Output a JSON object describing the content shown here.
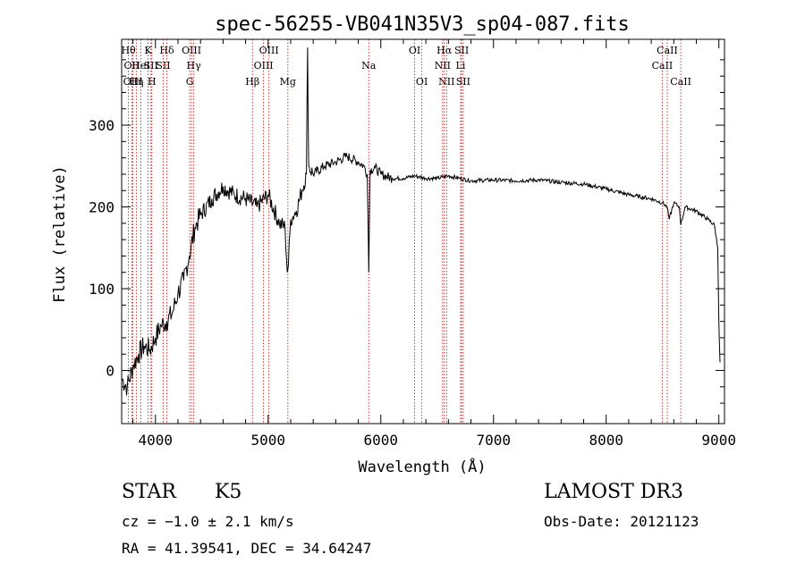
{
  "chart_data": {
    "type": "line",
    "title": "spec-56255-VB041N35V3_sp04-087.fits",
    "xlabel": "Wavelength (Å)",
    "ylabel": "Flux (relative)",
    "xlim": [
      3700,
      9050
    ],
    "ylim": [
      -65,
      405
    ],
    "x_ticks": [
      4000,
      5000,
      6000,
      7000,
      8000,
      9000
    ],
    "y_ticks": [
      0,
      100,
      200,
      300
    ],
    "x_tick_labels": [
      "4000",
      "5000",
      "6000",
      "7000",
      "8000",
      "9000"
    ],
    "y_tick_labels": [
      "0",
      "100",
      "200",
      "300"
    ],
    "grid": false,
    "line_color": "#000000",
    "marker_color": "#cc2222",
    "series": [
      {
        "name": "Flux",
        "x": [
          3700,
          3750,
          3800,
          3850,
          3900,
          3950,
          4000,
          4050,
          4100,
          4150,
          4200,
          4250,
          4300,
          4350,
          4400,
          4500,
          4600,
          4700,
          4800,
          4900,
          5000,
          5100,
          5150,
          5170,
          5180,
          5200,
          5250,
          5300,
          5340,
          5350,
          5360,
          5400,
          5500,
          5600,
          5700,
          5800,
          5850,
          5880,
          5893,
          5905,
          5950,
          6000,
          6100,
          6200,
          6300,
          6400,
          6500,
          6600,
          6700,
          6800,
          7000,
          7200,
          7400,
          7600,
          7800,
          8000,
          8200,
          8400,
          8500,
          8540,
          8560,
          8600,
          8650,
          8662,
          8700,
          8800,
          8900,
          8960,
          8990,
          9000,
          9010
        ],
        "y": [
          -10,
          -20,
          5,
          20,
          30,
          25,
          40,
          55,
          60,
          70,
          95,
          110,
          140,
          175,
          190,
          210,
          225,
          215,
          210,
          200,
          215,
          180,
          175,
          120,
          130,
          185,
          195,
          220,
          240,
          395,
          250,
          240,
          250,
          255,
          262,
          255,
          250,
          240,
          120,
          245,
          248,
          240,
          235,
          235,
          238,
          235,
          235,
          238,
          235,
          232,
          233,
          232,
          233,
          230,
          228,
          222,
          215,
          210,
          205,
          200,
          185,
          205,
          200,
          178,
          200,
          195,
          185,
          178,
          150,
          60,
          10
        ]
      }
    ],
    "annotations": [
      {
        "x": 3760,
        "label": "Hθ",
        "row": 1
      },
      {
        "x": 3790,
        "label": "OII",
        "row": 2
      },
      {
        "x": 3800,
        "label": "OIII",
        "row": 3
      },
      {
        "x": 3830,
        "label": "Hη",
        "row": 3
      },
      {
        "x": 3870,
        "label": "HeI",
        "row": 2
      },
      {
        "x": 3934,
        "label": "K",
        "row": 1
      },
      {
        "x": 3960,
        "label": "SII",
        "row": 2
      },
      {
        "x": 3968,
        "label": "H",
        "row": 3
      },
      {
        "x": 4101,
        "label": "Hδ",
        "row": 1
      },
      {
        "x": 4069,
        "label": "SII",
        "row": 2
      },
      {
        "x": 4320,
        "label": "OIII",
        "row": 1
      },
      {
        "x": 4340,
        "label": "Hγ",
        "row": 2
      },
      {
        "x": 4304,
        "label": "G",
        "row": 3
      },
      {
        "x": 4861,
        "label": "Hβ",
        "row": 3
      },
      {
        "x": 5007,
        "label": "OIII",
        "row": 1
      },
      {
        "x": 4959,
        "label": "OIII",
        "row": 2
      },
      {
        "x": 5175,
        "label": "Mg",
        "row": 3
      },
      {
        "x": 5893,
        "label": "Na",
        "row": 2
      },
      {
        "x": 6300,
        "label": "OI",
        "row": 1
      },
      {
        "x": 6364,
        "label": "OI",
        "row": 3
      },
      {
        "x": 6563,
        "label": "Hα",
        "row": 1
      },
      {
        "x": 6548,
        "label": "NII",
        "row": 2
      },
      {
        "x": 6584,
        "label": "NII",
        "row": 3
      },
      {
        "x": 6717,
        "label": "SII",
        "row": 1
      },
      {
        "x": 6708,
        "label": "Li",
        "row": 2
      },
      {
        "x": 6731,
        "label": "SII",
        "row": 3
      },
      {
        "x": 8542,
        "label": "CaII",
        "row": 1
      },
      {
        "x": 8498,
        "label": "CaII",
        "row": 2
      },
      {
        "x": 8662,
        "label": "CaII",
        "row": 3
      }
    ]
  },
  "info": {
    "object_type": "STAR",
    "subclass": "K5",
    "survey": "LAMOST DR3",
    "cz": "cz = −1.0 ± 2.1 km/s",
    "obs_date": "Obs-Date: 20121123",
    "coords": "RA =  41.39541, DEC =  34.64247"
  }
}
